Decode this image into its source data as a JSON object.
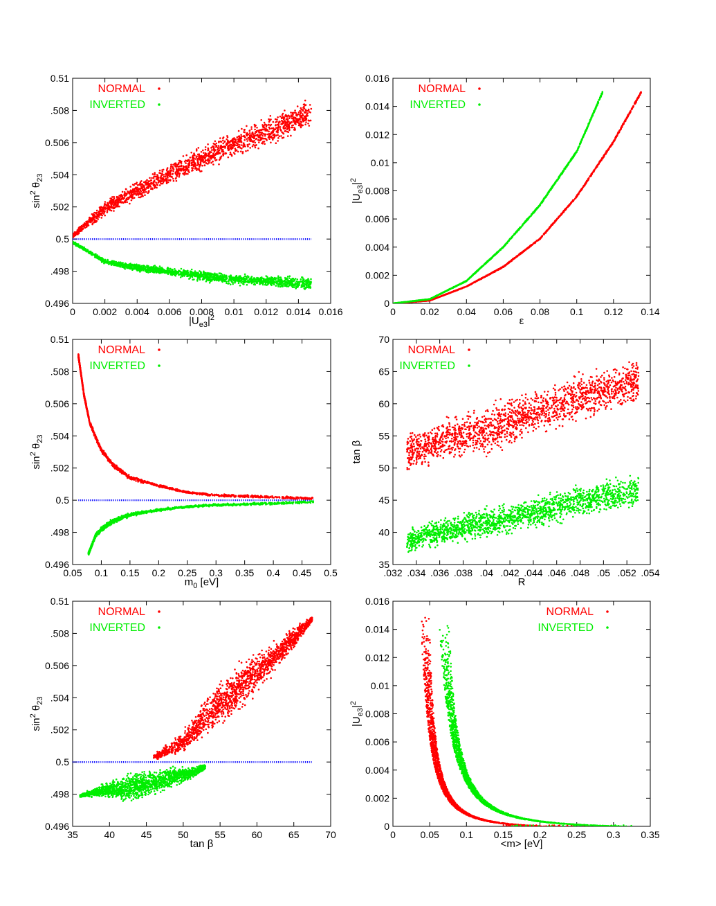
{
  "colors": {
    "normal": "#ff0000",
    "inverted": "#00ee00",
    "reference": "#0000ff"
  },
  "chart_data": [
    {
      "type": "scatter",
      "xlabel": "|U_e3|^2",
      "ylabel": "sin^2 θ_23",
      "xlim": [
        0,
        0.016
      ],
      "ylim": [
        0.496,
        0.51
      ],
      "xticks": [
        "0",
        "0.002",
        "0.004",
        "0.006",
        "0.008",
        "0.01",
        "0.012",
        "0.014",
        "0.016"
      ],
      "yticks": [
        "0.496",
        ".498",
        "0.5",
        ".502",
        ".504",
        "0.506",
        ".508",
        "0.51"
      ],
      "reference_line": {
        "y": 0.5,
        "x": [
          0,
          0.0148
        ]
      },
      "legend": {
        "position": "top-left",
        "entries": [
          "NORMAL",
          "INVERTED"
        ]
      },
      "series": [
        {
          "name": "NORMAL",
          "color": "#ff0000",
          "points": [
            [
              0,
              0.5002
            ],
            [
              0.002,
              0.5019
            ],
            [
              0.004,
              0.503
            ],
            [
              0.006,
              0.504
            ],
            [
              0.008,
              0.505
            ],
            [
              0.01,
              0.5059
            ],
            [
              0.012,
              0.5067
            ],
            [
              0.0148,
              0.5078
            ]
          ],
          "spread": [
            [
              0,
              0.0002
            ],
            [
              0.002,
              0.0006
            ],
            [
              0.004,
              0.0007
            ],
            [
              0.006,
              0.0008
            ],
            [
              0.008,
              0.0009
            ],
            [
              0.01,
              0.001
            ],
            [
              0.012,
              0.0011
            ],
            [
              0.0148,
              0.0012
            ]
          ]
        },
        {
          "name": "INVERTED",
          "color": "#00ee00",
          "points": [
            [
              0,
              0.4998
            ],
            [
              0.002,
              0.4986
            ],
            [
              0.004,
              0.4982
            ],
            [
              0.006,
              0.498
            ],
            [
              0.008,
              0.4977
            ],
            [
              0.01,
              0.4975
            ],
            [
              0.012,
              0.4974
            ],
            [
              0.0148,
              0.4972
            ]
          ],
          "spread": [
            [
              0,
              0.0001
            ],
            [
              0.002,
              0.0002
            ],
            [
              0.004,
              0.0003
            ],
            [
              0.006,
              0.0003
            ],
            [
              0.008,
              0.0004
            ],
            [
              0.01,
              0.0004
            ],
            [
              0.012,
              0.0004
            ],
            [
              0.0148,
              0.0005
            ]
          ]
        }
      ]
    },
    {
      "type": "scatter",
      "xlabel": "ε",
      "ylabel": "|U_e3|^2",
      "xlim": [
        0,
        0.14
      ],
      "ylim": [
        0,
        0.016
      ],
      "xticks": [
        "0",
        "0.02",
        "0.04",
        "0.06",
        "0.08",
        "0.1",
        "0.12",
        "0.14"
      ],
      "yticks": [
        "0",
        "0.002",
        "0.004",
        "0.006",
        "0.008",
        "0.01",
        "0.012",
        "0.014",
        "0.016"
      ],
      "legend": {
        "position": "top-right",
        "entries": [
          "NORMAL",
          "INVERTED"
        ]
      },
      "series": [
        {
          "name": "NORMAL",
          "color": "#ff0000",
          "points": [
            [
              0,
              0
            ],
            [
              0.02,
              0.0002
            ],
            [
              0.04,
              0.0012
            ],
            [
              0.06,
              0.0026
            ],
            [
              0.08,
              0.0046
            ],
            [
              0.1,
              0.0076
            ],
            [
              0.12,
              0.0115
            ],
            [
              0.135,
              0.015
            ]
          ],
          "spread": [
            [
              0,
              0
            ],
            [
              0.135,
              0.0001
            ]
          ]
        },
        {
          "name": "INVERTED",
          "color": "#00ee00",
          "points": [
            [
              0,
              0
            ],
            [
              0.02,
              0.0003
            ],
            [
              0.04,
              0.0016
            ],
            [
              0.06,
              0.004
            ],
            [
              0.08,
              0.007
            ],
            [
              0.1,
              0.0108
            ],
            [
              0.114,
              0.015
            ]
          ],
          "spread": [
            [
              0,
              0
            ],
            [
              0.114,
              0.0001
            ]
          ]
        }
      ]
    },
    {
      "type": "scatter",
      "xlabel": "m_0  [eV]",
      "ylabel": "sin^2 θ_23",
      "xlim": [
        0.05,
        0.5
      ],
      "ylim": [
        0.496,
        0.51
      ],
      "xticks": [
        "0.05",
        "0.1",
        "0.15",
        "0.2",
        "0.25",
        "0.3",
        "0.35",
        "0.4",
        "0.45",
        "0.5"
      ],
      "yticks": [
        "0.496",
        ".498",
        "0.5",
        ".502",
        ".504",
        "0.506",
        ".508",
        "0.51"
      ],
      "reference_line": {
        "y": 0.5,
        "x": [
          0.06,
          0.47
        ]
      },
      "legend": {
        "position": "top-right",
        "entries": [
          "NORMAL",
          "INVERTED"
        ]
      },
      "series": [
        {
          "name": "NORMAL",
          "color": "#ff0000",
          "points": [
            [
              0.06,
              0.509
            ],
            [
              0.07,
              0.5065
            ],
            [
              0.08,
              0.5048
            ],
            [
              0.1,
              0.5031
            ],
            [
              0.12,
              0.5022
            ],
            [
              0.15,
              0.5014
            ],
            [
              0.2,
              0.5009
            ],
            [
              0.25,
              0.5005
            ],
            [
              0.3,
              0.5003
            ],
            [
              0.4,
              0.5002
            ],
            [
              0.47,
              0.5001
            ]
          ],
          "spread": [
            [
              0.06,
              0.0001
            ],
            [
              0.1,
              0.0002
            ],
            [
              0.2,
              0.0001
            ],
            [
              0.47,
              0.0001
            ]
          ]
        },
        {
          "name": "INVERTED",
          "color": "#00ee00",
          "points": [
            [
              0.078,
              0.4967
            ],
            [
              0.09,
              0.4978
            ],
            [
              0.1,
              0.4982
            ],
            [
              0.12,
              0.4987
            ],
            [
              0.15,
              0.4991
            ],
            [
              0.2,
              0.4994
            ],
            [
              0.25,
              0.4996
            ],
            [
              0.3,
              0.4997
            ],
            [
              0.4,
              0.4998
            ],
            [
              0.47,
              0.4999
            ]
          ],
          "spread": [
            [
              0.078,
              0.0001
            ],
            [
              0.1,
              0.0002
            ],
            [
              0.2,
              0.0001
            ],
            [
              0.47,
              0.0001
            ]
          ]
        }
      ]
    },
    {
      "type": "scatter",
      "xlabel": "R",
      "ylabel": "tan β",
      "xlim": [
        0.032,
        0.054
      ],
      "ylim": [
        35,
        70
      ],
      "xticks": [
        ".032",
        ".034",
        ".036",
        ".038",
        ".04",
        ".042",
        ".044",
        ".046",
        ".048",
        ".05",
        ".052",
        ".054"
      ],
      "yticks": [
        "35",
        "40",
        "45",
        "50",
        "55",
        "60",
        "65",
        "70"
      ],
      "legend": {
        "position": "top-left",
        "entries": [
          "NORMAL",
          "INVERTED"
        ]
      },
      "series": [
        {
          "name": "NORMAL",
          "color": "#ff0000",
          "points": [
            [
              0.0332,
              52.5
            ],
            [
              0.036,
              54.0
            ],
            [
              0.04,
              56.0
            ],
            [
              0.044,
              58.5
            ],
            [
              0.048,
              61.0
            ],
            [
              0.053,
              63.5
            ]
          ],
          "spread": [
            [
              0.0332,
              4.0
            ],
            [
              0.04,
              4.5
            ],
            [
              0.048,
              4.5
            ],
            [
              0.053,
              4.5
            ]
          ]
        },
        {
          "name": "INVERTED",
          "color": "#00ee00",
          "points": [
            [
              0.0332,
              38.5
            ],
            [
              0.036,
              40.0
            ],
            [
              0.04,
              41.5
            ],
            [
              0.044,
              43.0
            ],
            [
              0.048,
              45.0
            ],
            [
              0.053,
              46.5
            ]
          ],
          "spread": [
            [
              0.0332,
              2.5
            ],
            [
              0.04,
              3.0
            ],
            [
              0.048,
              3.2
            ],
            [
              0.053,
              3.2
            ]
          ]
        }
      ]
    },
    {
      "type": "scatter",
      "xlabel": "tan β",
      "ylabel": "sin^2 θ_23",
      "xlim": [
        35,
        70
      ],
      "ylim": [
        0.496,
        0.51
      ],
      "xticks": [
        "35",
        "40",
        "45",
        "50",
        "55",
        "60",
        "65",
        "70"
      ],
      "yticks": [
        "0.496",
        ".498",
        "0.5",
        ".502",
        ".504",
        "0.506",
        ".508",
        "0.51"
      ],
      "reference_line": {
        "y": 0.5,
        "x": [
          35,
          67.5
        ]
      },
      "legend": {
        "position": "top-left",
        "entries": [
          "NORMAL",
          "INVERTED"
        ]
      },
      "series": [
        {
          "name": "NORMAL",
          "color": "#ff0000",
          "points": [
            [
              46,
              0.5003
            ],
            [
              50,
              0.5012
            ],
            [
              53,
              0.5028
            ],
            [
              56,
              0.504
            ],
            [
              59,
              0.5052
            ],
            [
              62,
              0.5064
            ],
            [
              65,
              0.5077
            ],
            [
              67.5,
              0.5089
            ]
          ],
          "spread": [
            [
              46,
              0.0002
            ],
            [
              50,
              0.0008
            ],
            [
              53,
              0.0015
            ],
            [
              56,
              0.0018
            ],
            [
              59,
              0.0016
            ],
            [
              62,
              0.0012
            ],
            [
              65,
              0.0008
            ],
            [
              67.5,
              0.0002
            ]
          ]
        },
        {
          "name": "INVERTED",
          "color": "#00ee00",
          "points": [
            [
              36,
              0.4979
            ],
            [
              39,
              0.4982
            ],
            [
              42,
              0.4984
            ],
            [
              45,
              0.4986
            ],
            [
              48,
              0.499
            ],
            [
              51,
              0.4993
            ],
            [
              53,
              0.4997
            ]
          ],
          "spread": [
            [
              36,
              0.0001
            ],
            [
              39,
              0.0005
            ],
            [
              42,
              0.0009
            ],
            [
              45,
              0.0011
            ],
            [
              48,
              0.0008
            ],
            [
              51,
              0.0005
            ],
            [
              53,
              0.0002
            ]
          ]
        }
      ]
    },
    {
      "type": "scatter",
      "xlabel": "<m>  [eV]",
      "ylabel": "|U_e3|^2",
      "xlim": [
        0,
        0.35
      ],
      "ylim": [
        0,
        0.016
      ],
      "xticks": [
        "0",
        "0.05",
        "0.1",
        "0.15",
        "0.2",
        "0.25",
        "0.3",
        "0.35"
      ],
      "yticks": [
        "0",
        "0.002",
        "0.004",
        "0.006",
        "0.008",
        "0.01",
        "0.012",
        "0.014",
        "0.016"
      ],
      "legend": {
        "position": "top-right",
        "entries": [
          "NORMAL",
          "INVERTED"
        ]
      },
      "series": [
        {
          "name": "NORMAL",
          "color": "#ff0000",
          "curve": "y = a / (x - x0)^2 - c",
          "x0": 0.02,
          "a": 6.8e-06,
          "c": 0.0002,
          "xrange": [
            0.038,
            0.3
          ],
          "ycap": 0.015,
          "spread_x": 0.012
        },
        {
          "name": "INVERTED",
          "color": "#00ee00",
          "curve": "y = a / (x - x0)^2 - c",
          "x0": 0.035,
          "a": 1.48e-05,
          "c": 0.0002,
          "xrange": [
            0.06,
            0.33
          ],
          "ycap": 0.015,
          "spread_x": 0.014
        }
      ]
    }
  ]
}
